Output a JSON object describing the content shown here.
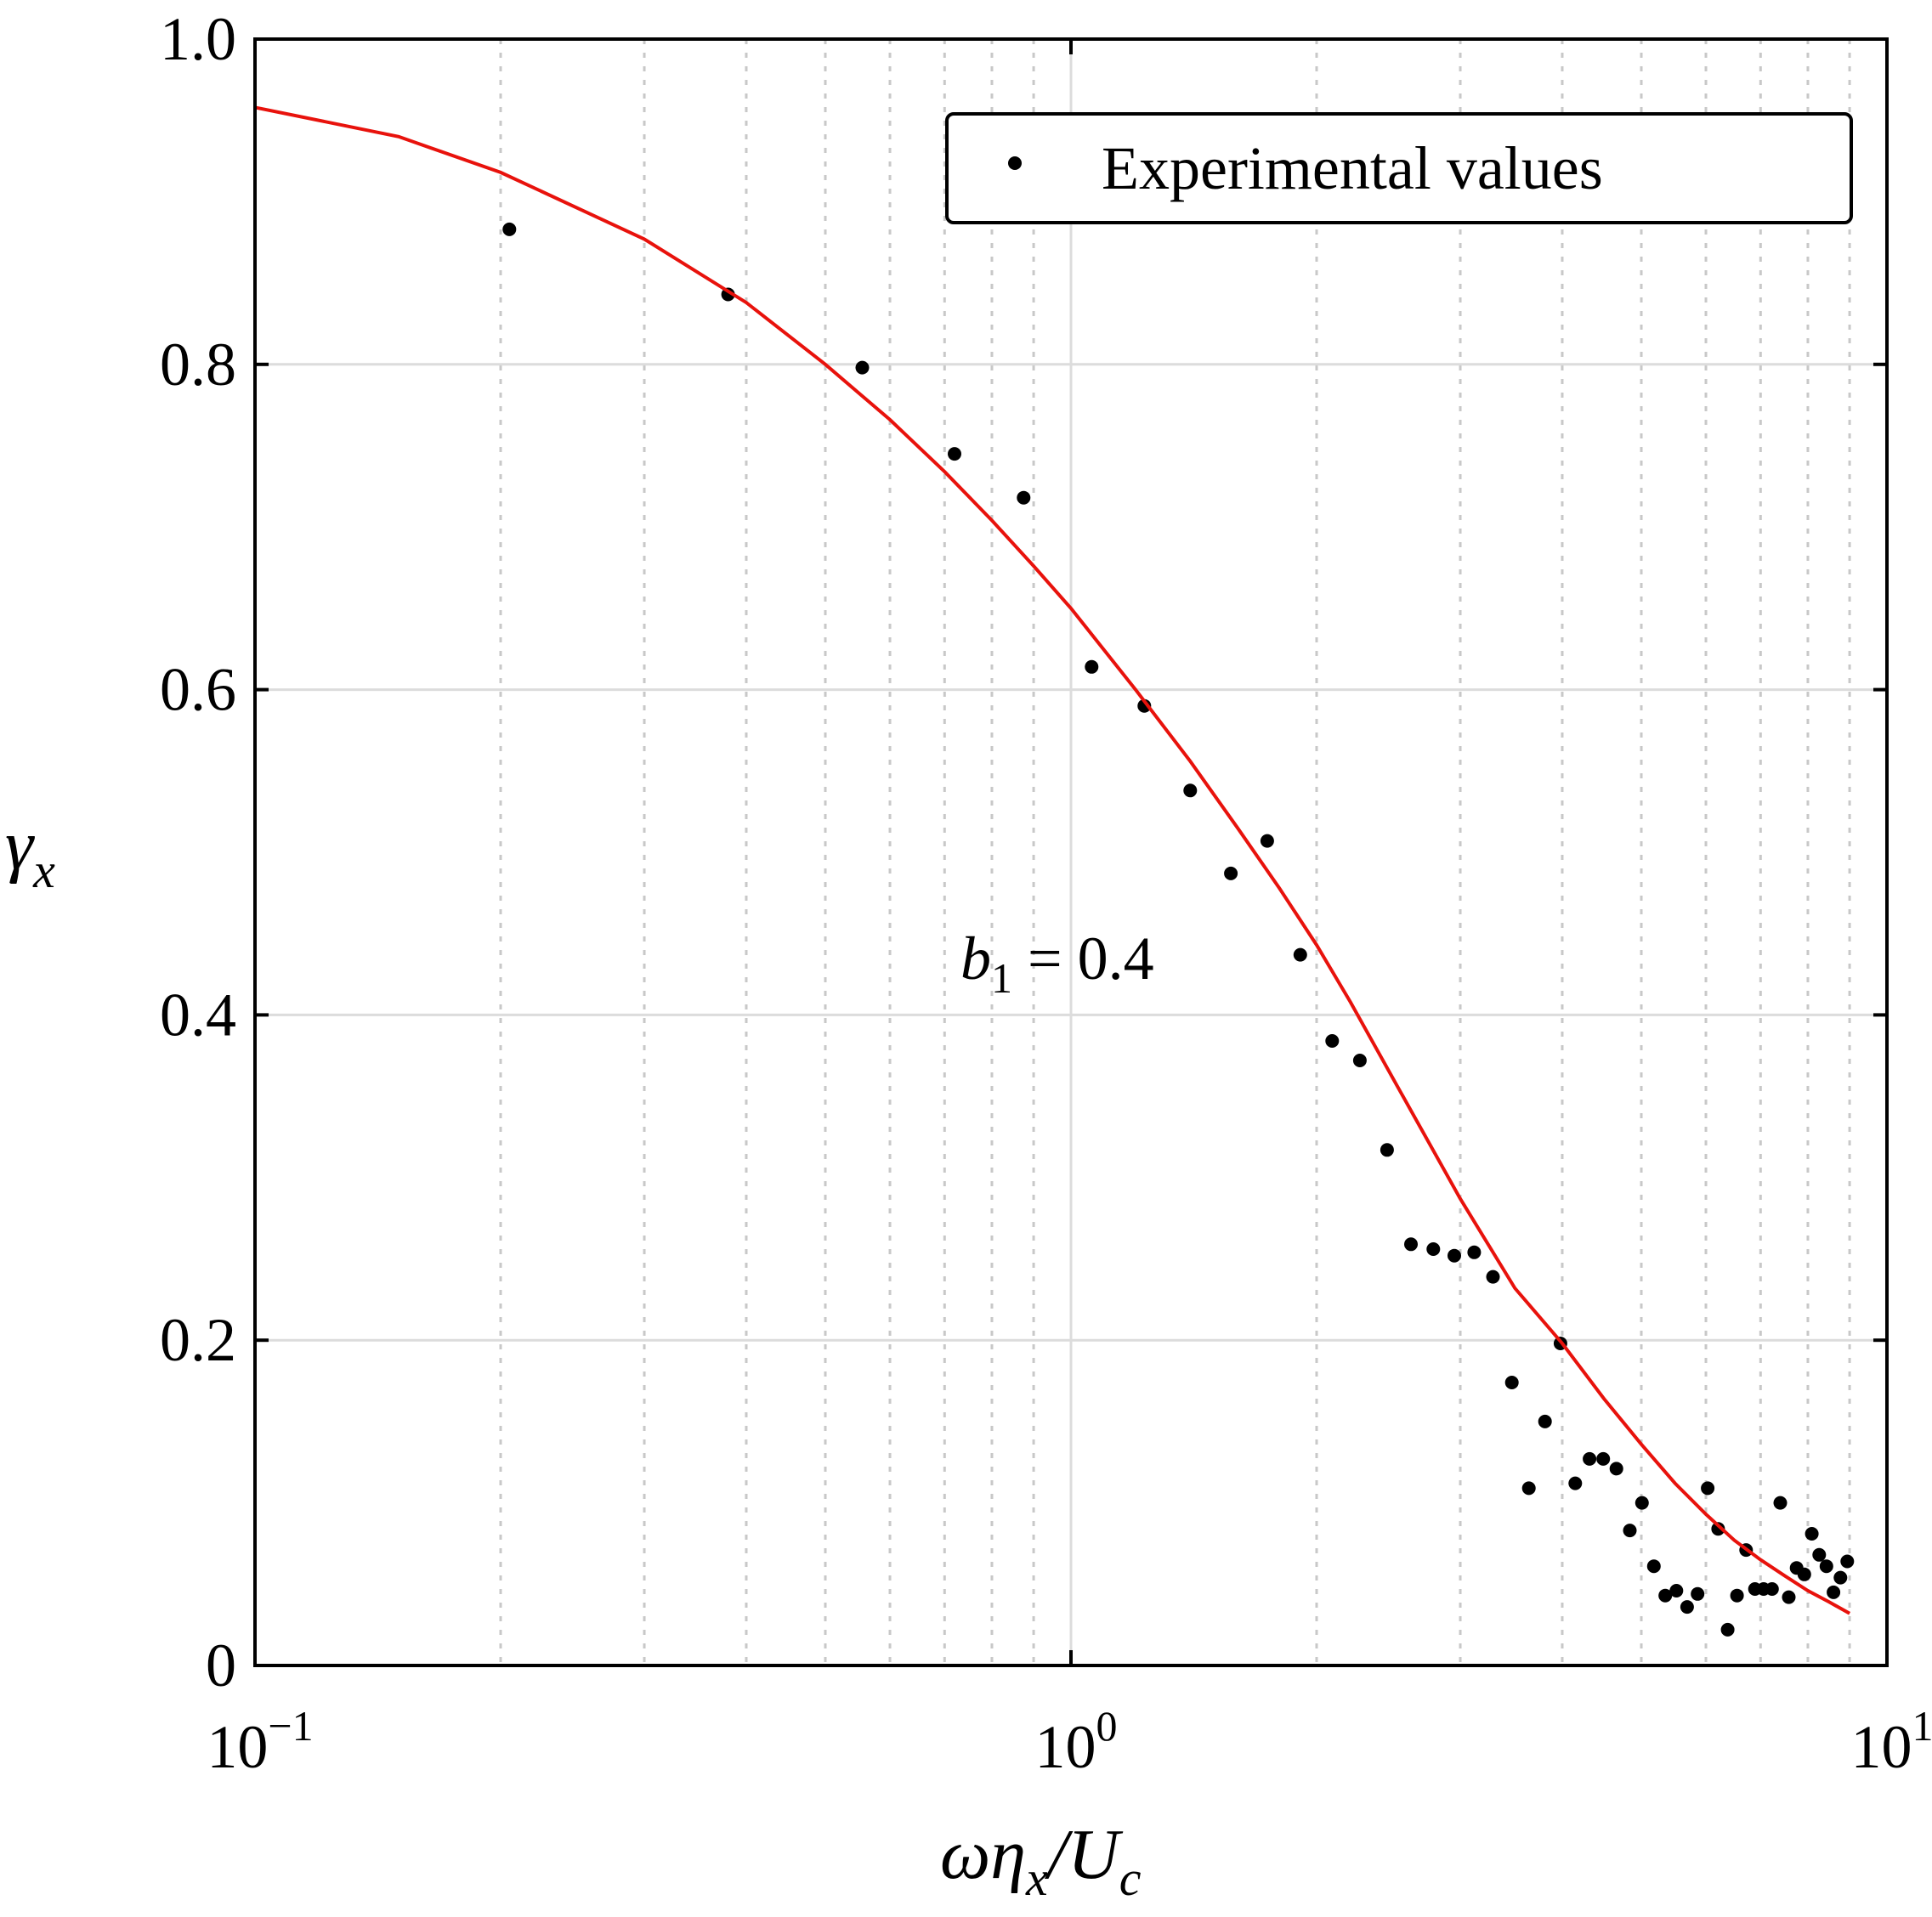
{
  "chart_data": {
    "type": "scatter",
    "xscale": "log",
    "xlim": [
      0.1,
      10
    ],
    "ylim": [
      0,
      1.0
    ],
    "grid": true,
    "ylabel": "γx",
    "xlabel": "ωηx/Uc",
    "xticks": [
      {
        "value": 0.1,
        "base": "10",
        "exp": "−1"
      },
      {
        "value": 1,
        "base": "10",
        "exp": "0"
      },
      {
        "value": 10,
        "base": "10",
        "exp": "1"
      }
    ],
    "yticks": [
      {
        "value": 0,
        "label": "0"
      },
      {
        "value": 0.2,
        "label": "0.2"
      },
      {
        "value": 0.4,
        "label": "0.4"
      },
      {
        "value": 0.6,
        "label": "0.6"
      },
      {
        "value": 0.8,
        "label": "0.8"
      },
      {
        "value": 1.0,
        "label": "1.0"
      }
    ],
    "legend": {
      "position": "top-right",
      "entries": [
        "Experimental values"
      ]
    },
    "annotation": {
      "text_main": "b",
      "text_sub": "1",
      "text_rest": " = 0.4",
      "x": 0.83,
      "y": 0.43
    },
    "series": [
      {
        "name": "Experimental values",
        "kind": "scatter",
        "color": "#000000",
        "points": [
          [
            0.205,
            0.883
          ],
          [
            0.38,
            0.843
          ],
          [
            0.555,
            0.798
          ],
          [
            0.72,
            0.745
          ],
          [
            0.875,
            0.718
          ],
          [
            1.06,
            0.614
          ],
          [
            1.23,
            0.59
          ],
          [
            1.4,
            0.538
          ],
          [
            1.57,
            0.487
          ],
          [
            1.74,
            0.507
          ],
          [
            1.91,
            0.437
          ],
          [
            2.09,
            0.384
          ],
          [
            2.26,
            0.372
          ],
          [
            2.44,
            0.317
          ],
          [
            2.61,
            0.259
          ],
          [
            2.78,
            0.256
          ],
          [
            2.95,
            0.252
          ],
          [
            3.12,
            0.254
          ],
          [
            3.29,
            0.239
          ],
          [
            3.47,
            0.174
          ],
          [
            3.64,
            0.109
          ],
          [
            3.81,
            0.15
          ],
          [
            3.98,
            0.198
          ],
          [
            4.15,
            0.112
          ],
          [
            4.32,
            0.127
          ],
          [
            4.49,
            0.127
          ],
          [
            4.66,
            0.121
          ],
          [
            4.84,
            0.083
          ],
          [
            5.01,
            0.1
          ],
          [
            5.18,
            0.061
          ],
          [
            5.35,
            0.043
          ],
          [
            5.52,
            0.046
          ],
          [
            5.69,
            0.036
          ],
          [
            5.86,
            0.044
          ],
          [
            6.03,
            0.109
          ],
          [
            6.21,
            0.084
          ],
          [
            6.38,
            0.022
          ],
          [
            6.55,
            0.043
          ],
          [
            6.72,
            0.071
          ],
          [
            6.89,
            0.047
          ],
          [
            7.06,
            0.047
          ],
          [
            7.23,
            0.047
          ],
          [
            7.4,
            0.1
          ],
          [
            7.58,
            0.042
          ],
          [
            7.75,
            0.06
          ],
          [
            7.92,
            0.056
          ],
          [
            8.09,
            0.081
          ],
          [
            8.26,
            0.068
          ],
          [
            8.43,
            0.061
          ],
          [
            8.6,
            0.045
          ],
          [
            8.77,
            0.054
          ],
          [
            8.94,
            0.064
          ]
        ]
      },
      {
        "name": "",
        "kind": "line",
        "color": "#e8120c",
        "points": [
          [
            0.1,
            0.958
          ],
          [
            0.15,
            0.94
          ],
          [
            0.2,
            0.918
          ],
          [
            0.3,
            0.877
          ],
          [
            0.4,
            0.838
          ],
          [
            0.5,
            0.8
          ],
          [
            0.6,
            0.766
          ],
          [
            0.7,
            0.734
          ],
          [
            0.8,
            0.704
          ],
          [
            0.9,
            0.676
          ],
          [
            1.0,
            0.65
          ],
          [
            1.2,
            0.6
          ],
          [
            1.4,
            0.556
          ],
          [
            1.6,
            0.515
          ],
          [
            1.8,
            0.478
          ],
          [
            2.0,
            0.443
          ],
          [
            2.2,
            0.408
          ],
          [
            2.5,
            0.358
          ],
          [
            3.0,
            0.287
          ],
          [
            3.5,
            0.232
          ],
          [
            4.0,
            0.198
          ],
          [
            4.5,
            0.164
          ],
          [
            5.0,
            0.136
          ],
          [
            5.5,
            0.112
          ],
          [
            6.0,
            0.093
          ],
          [
            6.5,
            0.077
          ],
          [
            7.0,
            0.065
          ],
          [
            7.5,
            0.055
          ],
          [
            8.0,
            0.046
          ],
          [
            8.5,
            0.039
          ],
          [
            9.0,
            0.032
          ]
        ]
      }
    ]
  }
}
